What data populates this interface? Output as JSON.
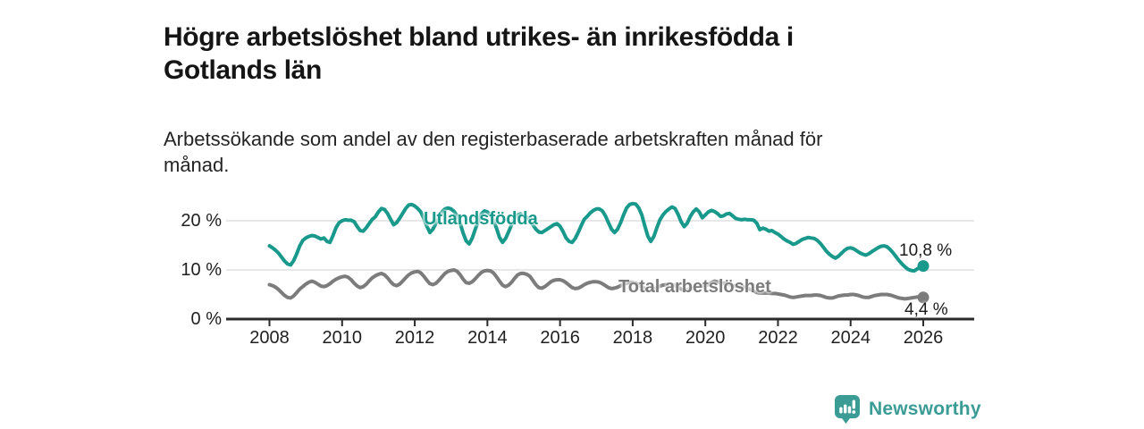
{
  "header": {
    "title": "Högre arbetslöshet bland utrikes- än inrikesfödda i Gotlands län",
    "subtitle": "Arbetssökande som andel av den registerbaserade arbetskraften månad för månad."
  },
  "chart_data": {
    "type": "line",
    "unit": "%",
    "x_start_year": 2008,
    "x_monthly_step": 1,
    "x_ticks": [
      2008,
      2010,
      2012,
      2014,
      2016,
      2018,
      2020,
      2022,
      2024,
      2026
    ],
    "y_ticks": [
      {
        "value": 0,
        "label": "0 %"
      },
      {
        "value": 10,
        "label": "10 %"
      },
      {
        "value": 20,
        "label": "20 %"
      }
    ],
    "ylim": [
      0,
      25
    ],
    "grid": "horizontal-only",
    "legend_position": "inline-labels-on-lines",
    "axis_color": "#2b2b2b",
    "grid_color": "#d9d9d9",
    "series": [
      {
        "name": "Utlandsfödda",
        "color": "#18998b",
        "end_label": "10,8 %",
        "end_value": 10.8,
        "values": [
          14.9,
          14.5,
          14.0,
          13.4,
          12.6,
          11.8,
          11.2,
          11.0,
          11.9,
          13.3,
          14.9,
          16.0,
          16.5,
          16.8,
          17.0,
          16.9,
          16.6,
          16.3,
          16.5,
          15.8,
          15.6,
          17.0,
          18.6,
          19.6,
          20.0,
          20.2,
          20.1,
          20.1,
          19.8,
          18.8,
          18.0,
          17.9,
          18.6,
          19.5,
          20.3,
          20.8,
          21.8,
          22.5,
          22.3,
          21.5,
          20.3,
          19.2,
          19.6,
          20.5,
          21.5,
          22.5,
          23.2,
          23.3,
          23.0,
          22.5,
          21.8,
          20.5,
          18.9,
          17.6,
          18.3,
          19.5,
          20.8,
          21.8,
          22.4,
          22.6,
          22.4,
          21.9,
          21.0,
          19.5,
          17.5,
          15.9,
          15.3,
          16.5,
          18.3,
          20.0,
          21.4,
          22.0,
          21.8,
          21.2,
          20.2,
          18.5,
          16.6,
          15.6,
          16.4,
          17.7,
          19.2,
          20.4,
          21.2,
          21.4,
          21.0,
          20.7,
          20.1,
          19.2,
          18.3,
          17.7,
          17.6,
          18.0,
          18.4,
          18.8,
          19.2,
          19.4,
          18.9,
          17.8,
          16.5,
          15.8,
          15.6,
          16.4,
          17.6,
          19.0,
          20.3,
          20.9,
          21.6,
          22.1,
          22.4,
          22.4,
          22.0,
          21.0,
          19.6,
          18.3,
          17.6,
          18.3,
          19.6,
          21.2,
          22.6,
          23.3,
          23.5,
          23.4,
          22.6,
          21.2,
          19.0,
          16.9,
          15.8,
          16.8,
          18.6,
          20.2,
          21.2,
          21.9,
          22.4,
          22.8,
          22.5,
          21.3,
          19.8,
          18.8,
          19.5,
          20.8,
          21.8,
          22.4,
          21.8,
          20.6,
          21.2,
          21.8,
          22.1,
          21.9,
          21.5,
          20.9,
          21.0,
          21.4,
          21.5,
          21.0,
          20.5,
          20.3,
          20.2,
          20.3,
          20.2,
          20.2,
          20.1,
          19.5,
          18.2,
          18.5,
          18.3,
          17.9,
          18.0,
          17.6,
          17.3,
          16.8,
          16.3,
          15.9,
          15.6,
          15.2,
          15.4,
          15.8,
          16.2,
          16.4,
          16.6,
          16.5,
          16.4,
          16.0,
          15.4,
          14.6,
          13.8,
          13.2,
          12.7,
          12.4,
          12.8,
          13.4,
          14.0,
          14.4,
          14.5,
          14.3,
          13.9,
          13.5,
          13.2,
          13.0,
          13.3,
          13.7,
          14.1,
          14.5,
          14.8,
          14.9,
          14.7,
          14.2,
          13.5,
          12.7,
          11.9,
          11.2,
          10.6,
          10.1,
          9.9,
          9.8,
          10.2,
          10.6,
          10.8
        ]
      },
      {
        "name": "Total arbetslöshet",
        "color": "#7c7c7c",
        "end_label": "4,4 %",
        "end_value": 4.4,
        "values": [
          7.0,
          6.8,
          6.5,
          6.0,
          5.4,
          4.8,
          4.4,
          4.3,
          4.7,
          5.4,
          6.1,
          6.6,
          7.1,
          7.5,
          7.7,
          7.5,
          7.1,
          6.7,
          6.6,
          6.8,
          7.2,
          7.7,
          8.1,
          8.4,
          8.6,
          8.7,
          8.5,
          8.0,
          7.3,
          6.7,
          6.4,
          6.6,
          7.1,
          7.8,
          8.4,
          8.8,
          9.1,
          9.3,
          9.0,
          8.4,
          7.6,
          7.0,
          6.8,
          7.1,
          7.7,
          8.4,
          9.0,
          9.4,
          9.6,
          9.7,
          9.4,
          8.7,
          7.9,
          7.2,
          7.0,
          7.3,
          7.9,
          8.6,
          9.3,
          9.7,
          9.9,
          10.0,
          9.7,
          9.0,
          8.1,
          7.4,
          7.3,
          7.6,
          8.2,
          8.9,
          9.5,
          9.8,
          9.9,
          9.8,
          9.4,
          8.6,
          7.7,
          6.9,
          6.6,
          6.9,
          7.5,
          8.3,
          9.0,
          9.3,
          9.3,
          9.1,
          8.7,
          7.9,
          7.0,
          6.4,
          6.3,
          6.6,
          7.1,
          7.6,
          7.9,
          8.0,
          8.0,
          7.8,
          7.4,
          6.9,
          6.4,
          6.2,
          6.3,
          6.6,
          7.0,
          7.3,
          7.5,
          7.6,
          7.6,
          7.5,
          7.2,
          6.8,
          6.4,
          6.2,
          6.3,
          6.5,
          6.8,
          7.1,
          7.3,
          7.4,
          7.4,
          7.3,
          7.0,
          6.6,
          6.2,
          5.9,
          5.9,
          6.1,
          6.4,
          6.7,
          6.9,
          7.0,
          7.0,
          7.0,
          6.8,
          6.5,
          6.1,
          5.9,
          6.0,
          6.2,
          6.4,
          6.6,
          6.7,
          6.8,
          6.9,
          7.0,
          7.4,
          7.7,
          7.6,
          7.4,
          7.3,
          7.2,
          7.0,
          6.8,
          6.7,
          6.6,
          6.6,
          6.5,
          6.3,
          6.0,
          5.7,
          5.4,
          5.3,
          5.3,
          5.3,
          5.3,
          5.2,
          5.2,
          5.1,
          5.0,
          4.9,
          4.7,
          4.5,
          4.4,
          4.5,
          4.6,
          4.7,
          4.8,
          4.8,
          4.8,
          4.9,
          4.9,
          4.8,
          4.6,
          4.4,
          4.3,
          4.3,
          4.5,
          4.7,
          4.8,
          4.9,
          4.9,
          5.0,
          5.0,
          4.9,
          4.7,
          4.5,
          4.4,
          4.4,
          4.6,
          4.8,
          4.9,
          5.0,
          5.0,
          5.0,
          4.9,
          4.7,
          4.5,
          4.3,
          4.2,
          4.1,
          4.2,
          4.3,
          4.4,
          4.5,
          4.5,
          4.4
        ]
      }
    ]
  },
  "footer": {
    "brand": "Newsworthy",
    "brand_color": "#3b9c95"
  }
}
